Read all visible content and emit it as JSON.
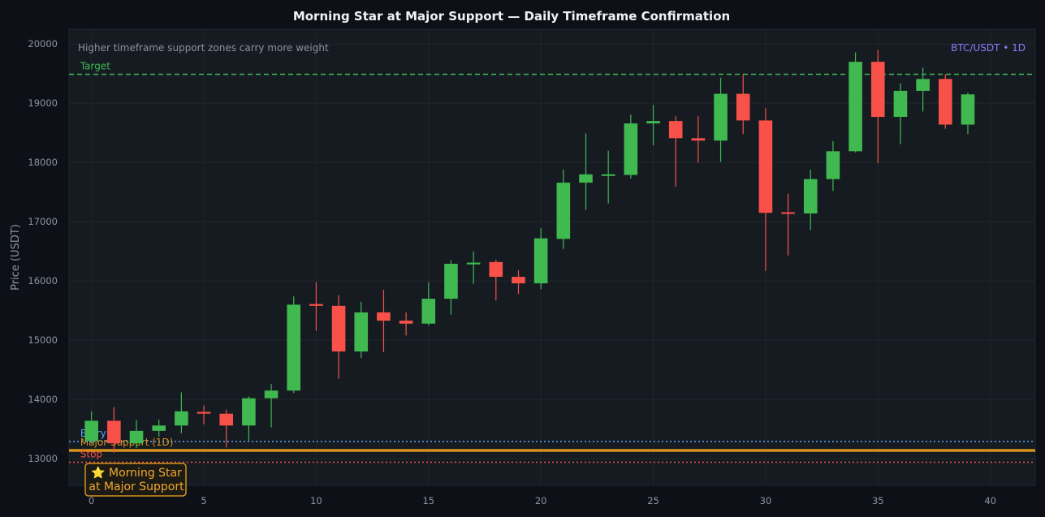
{
  "chart_data": {
    "type": "candlestick",
    "title": "Morning Star at Major Support — Daily Timeframe Confirmation",
    "ylabel": "Price (USDT)",
    "xlabel": "",
    "xlim": [
      -1,
      42
    ],
    "ylim": [
      12550,
      20250
    ],
    "x_ticks": [
      0,
      5,
      10,
      15,
      20,
      25,
      30,
      35,
      40
    ],
    "y_ticks": [
      13000,
      14000,
      15000,
      16000,
      17000,
      18000,
      19000,
      20000
    ],
    "grid": true,
    "top_left_note": "Higher timeframe support zones carry more weight",
    "top_right_label": "BTC/USDT • 1D",
    "candles": [
      {
        "x": 0,
        "open": 13300,
        "high": 13800,
        "low": 13250,
        "close": 13640
      },
      {
        "x": 1,
        "open": 13640,
        "high": 13870,
        "low": 13100,
        "close": 13260
      },
      {
        "x": 2,
        "open": 13260,
        "high": 13650,
        "low": 13180,
        "close": 13470
      },
      {
        "x": 3,
        "open": 13470,
        "high": 13660,
        "low": 13370,
        "close": 13560
      },
      {
        "x": 4,
        "open": 13560,
        "high": 14120,
        "low": 13430,
        "close": 13800
      },
      {
        "x": 5,
        "open": 13790,
        "high": 13900,
        "low": 13580,
        "close": 13760
      },
      {
        "x": 6,
        "open": 13760,
        "high": 13830,
        "low": 13190,
        "close": 13560
      },
      {
        "x": 7,
        "open": 13560,
        "high": 14050,
        "low": 13300,
        "close": 14020
      },
      {
        "x": 8,
        "open": 14020,
        "high": 14260,
        "low": 13530,
        "close": 14150
      },
      {
        "x": 9,
        "open": 14150,
        "high": 15740,
        "low": 14110,
        "close": 15600
      },
      {
        "x": 10,
        "open": 15610,
        "high": 15980,
        "low": 15160,
        "close": 15580
      },
      {
        "x": 11,
        "open": 15580,
        "high": 15760,
        "low": 14350,
        "close": 14810
      },
      {
        "x": 12,
        "open": 14810,
        "high": 15650,
        "low": 14700,
        "close": 15470
      },
      {
        "x": 13,
        "open": 15470,
        "high": 15850,
        "low": 14800,
        "close": 15330
      },
      {
        "x": 14,
        "open": 15330,
        "high": 15470,
        "low": 15080,
        "close": 15280
      },
      {
        "x": 15,
        "open": 15280,
        "high": 15980,
        "low": 15250,
        "close": 15700
      },
      {
        "x": 16,
        "open": 15700,
        "high": 16350,
        "low": 15430,
        "close": 16290
      },
      {
        "x": 17,
        "open": 16280,
        "high": 16500,
        "low": 15950,
        "close": 16310
      },
      {
        "x": 18,
        "open": 16320,
        "high": 16360,
        "low": 15670,
        "close": 16070
      },
      {
        "x": 19,
        "open": 16070,
        "high": 16180,
        "low": 15780,
        "close": 15960
      },
      {
        "x": 20,
        "open": 15960,
        "high": 16890,
        "low": 15860,
        "close": 16720
      },
      {
        "x": 21,
        "open": 16710,
        "high": 17880,
        "low": 16540,
        "close": 17660
      },
      {
        "x": 22,
        "open": 17660,
        "high": 18490,
        "low": 17200,
        "close": 17800
      },
      {
        "x": 23,
        "open": 17790,
        "high": 18200,
        "low": 17310,
        "close": 17800
      },
      {
        "x": 24,
        "open": 17790,
        "high": 18810,
        "low": 17730,
        "close": 18660
      },
      {
        "x": 25,
        "open": 18660,
        "high": 18970,
        "low": 18290,
        "close": 18700
      },
      {
        "x": 26,
        "open": 18700,
        "high": 18780,
        "low": 17590,
        "close": 18410
      },
      {
        "x": 27,
        "open": 18410,
        "high": 18780,
        "low": 18000,
        "close": 18370
      },
      {
        "x": 28,
        "open": 18370,
        "high": 19430,
        "low": 18010,
        "close": 19160
      },
      {
        "x": 29,
        "open": 19160,
        "high": 19490,
        "low": 18480,
        "close": 18710
      },
      {
        "x": 30,
        "open": 18710,
        "high": 18920,
        "low": 16170,
        "close": 17150
      },
      {
        "x": 31,
        "open": 17160,
        "high": 17470,
        "low": 16430,
        "close": 17150
      },
      {
        "x": 32,
        "open": 17140,
        "high": 17880,
        "low": 16860,
        "close": 17720
      },
      {
        "x": 33,
        "open": 17720,
        "high": 18360,
        "low": 17520,
        "close": 18190
      },
      {
        "x": 34,
        "open": 18190,
        "high": 19860,
        "low": 18170,
        "close": 19700
      },
      {
        "x": 35,
        "open": 19700,
        "high": 19900,
        "low": 17990,
        "close": 18770
      },
      {
        "x": 36,
        "open": 18770,
        "high": 19340,
        "low": 18310,
        "close": 19210
      },
      {
        "x": 37,
        "open": 19210,
        "high": 19600,
        "low": 18860,
        "close": 19410
      },
      {
        "x": 38,
        "open": 19410,
        "high": 19490,
        "low": 18570,
        "close": 18640
      },
      {
        "x": 39,
        "open": 18640,
        "high": 19180,
        "low": 18480,
        "close": 19150
      }
    ],
    "levels": [
      {
        "name": "Target",
        "value": 19490,
        "color": "#3fb950",
        "style": "dashed"
      },
      {
        "name": "Entry",
        "value": 13290,
        "color": "#58a6ff",
        "style": "dotted"
      },
      {
        "name": "Major Support (1D)",
        "value": 13140,
        "color": "#d4921a",
        "style": "solid"
      },
      {
        "name": "Stop",
        "value": 12940,
        "color": "#f85149",
        "style": "dotted"
      }
    ],
    "badge": {
      "line1": "⭐ Morning Star",
      "line2": "at Major Support",
      "x": 2
    },
    "colors": {
      "up": "#3fb950",
      "down": "#f85149",
      "background": "#0d1117",
      "plot": "#161b22",
      "grid": "#21262d"
    }
  }
}
